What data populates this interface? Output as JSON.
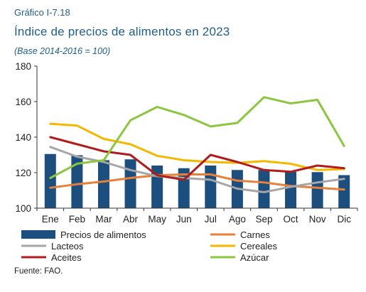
{
  "header": {
    "label": "Gráfico I-7.18",
    "title": "Índice de precios de alimentos en 2023",
    "subtitle": "(Base 2014-2016 = 100)"
  },
  "footer": {
    "source": "Fuente: FAO."
  },
  "chart_data": {
    "type": "bar",
    "categories": [
      "Ene",
      "Feb",
      "Mar",
      "Abr",
      "May",
      "Jun",
      "Jul",
      "Ago",
      "Sep",
      "Oct",
      "Nov",
      "Dic"
    ],
    "ylim": [
      100,
      180
    ],
    "yticks": [
      100,
      120,
      140,
      160,
      180
    ],
    "grid": false,
    "legend_position": "bottom",
    "series": [
      {
        "name": "Precios de alimentos",
        "kind": "bar",
        "color": "#1c4f7d",
        "values": [
          130.5,
          129.8,
          127.0,
          127.5,
          124.0,
          122.5,
          124.0,
          121.5,
          121.5,
          120.5,
          120.3,
          118.6
        ]
      },
      {
        "name": "Carnes",
        "kind": "line",
        "color": "#e8803a",
        "values": [
          111.5,
          113.5,
          115.0,
          117.0,
          118.5,
          119.0,
          119.0,
          115.5,
          114.5,
          112.5,
          111.5,
          110.5
        ]
      },
      {
        "name": "Lacteos",
        "kind": "line",
        "color": "#a6a6a6",
        "values": [
          134.5,
          129.0,
          126.0,
          121.5,
          118.0,
          117.0,
          116.0,
          111.0,
          109.0,
          112.0,
          114.5,
          116.5
        ]
      },
      {
        "name": "Cereales",
        "kind": "line",
        "color": "#f5b800",
        "values": [
          147.5,
          146.5,
          139.0,
          136.0,
          129.5,
          127.0,
          126.0,
          125.5,
          126.5,
          125.0,
          121.5,
          122.0
        ]
      },
      {
        "name": "Aceites",
        "kind": "line",
        "color": "#b01c1c",
        "values": [
          140.0,
          136.0,
          132.0,
          130.0,
          118.5,
          116.0,
          130.0,
          126.0,
          121.5,
          120.5,
          124.0,
          122.5
        ]
      },
      {
        "name": "Azúcar",
        "kind": "line",
        "color": "#8cc63f",
        "values": [
          117.0,
          125.0,
          127.0,
          149.5,
          157.0,
          152.5,
          146.0,
          148.0,
          162.5,
          159.0,
          161.0,
          135.0
        ]
      }
    ]
  }
}
